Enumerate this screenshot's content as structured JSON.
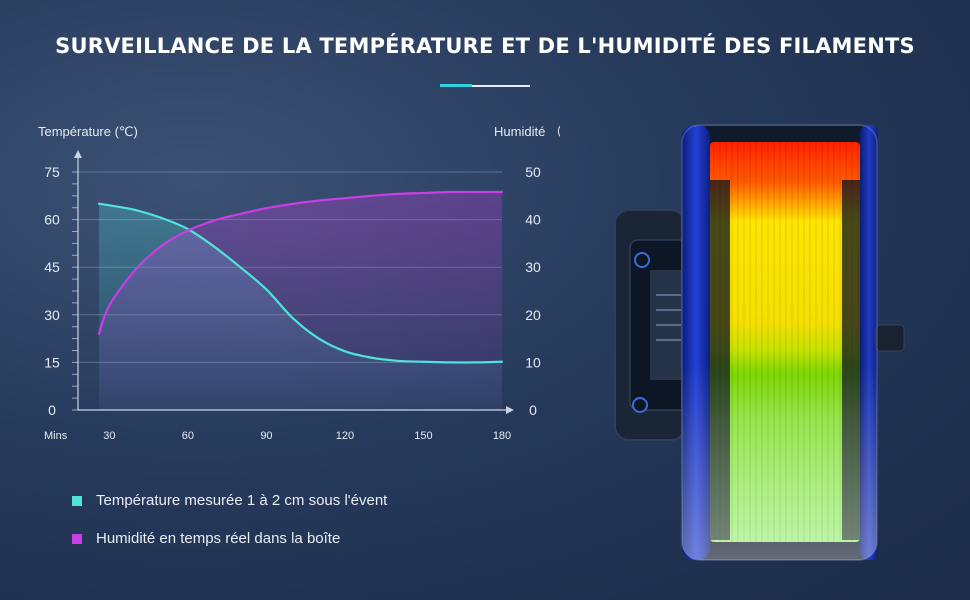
{
  "title": "SURVEILLANCE DE LA TEMPÉRATURE ET DE L'HUMIDITÉ DES FILAMENTS",
  "colors": {
    "temperature": "#4fe3da",
    "humidity": "#c93ee6",
    "accent": "#31d3df"
  },
  "legend": {
    "temperature": "Température mesurée 1 à 2 cm sous l'évent",
    "humidity": "Humidité en temps réel dans la boîte"
  },
  "chart_data": {
    "type": "line",
    "x_axis": {
      "label": "Mins",
      "range": [
        18,
        180
      ],
      "ticks": [
        30,
        60,
        90,
        120,
        150,
        180
      ]
    },
    "y_left": {
      "label": "Température (℃)",
      "range": [
        0,
        75
      ],
      "ticks": [
        0,
        15,
        30,
        45,
        60,
        75
      ]
    },
    "y_right": {
      "label": "Humidité （%）",
      "range": [
        0,
        50
      ],
      "ticks": [
        0,
        10,
        20,
        30,
        40,
        50
      ]
    },
    "grid": true,
    "series": [
      {
        "name": "Température mesurée 1 à 2 cm sous l'évent",
        "axis": "left",
        "x": [
          26,
          30,
          40,
          50,
          60,
          70,
          80,
          90,
          100,
          110,
          120,
          130,
          140,
          150,
          160,
          170,
          180
        ],
        "y": [
          65,
          64.5,
          63,
          60.5,
          57,
          51.5,
          45,
          38,
          29,
          22.5,
          18.5,
          16.5,
          15.5,
          15.2,
          15,
          15,
          15.2
        ]
      },
      {
        "name": "Humidité en temps réel dans la boîte",
        "axis": "right",
        "x": [
          26,
          30,
          40,
          50,
          60,
          70,
          80,
          90,
          100,
          110,
          120,
          130,
          140,
          150,
          160,
          170,
          180
        ],
        "y": [
          16,
          22,
          29.5,
          34.5,
          37.7,
          39.8,
          41.2,
          42.4,
          43.3,
          44,
          44.5,
          45,
          45.4,
          45.6,
          45.8,
          45.8,
          45.8
        ]
      }
    ]
  },
  "product_image": "spool-drybox-thermal-view"
}
